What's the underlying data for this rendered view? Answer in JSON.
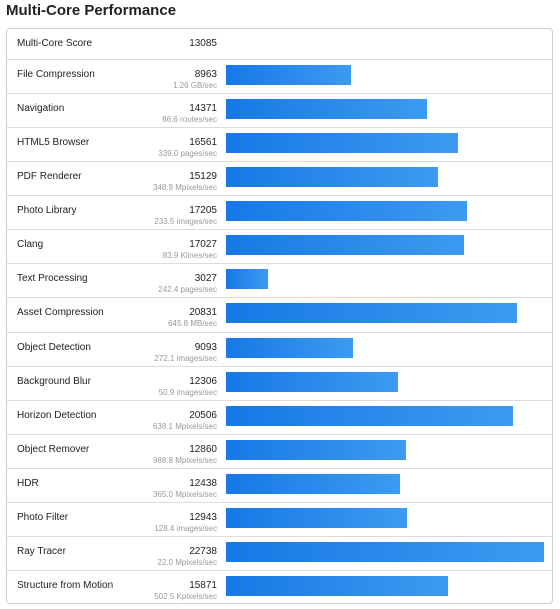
{
  "title": "Multi-Core Performance",
  "summary": {
    "label": "Multi-Core Score",
    "score": 13085
  },
  "rows": [
    {
      "name": "File Compression",
      "score": 8963,
      "rate": "1.26 GB/sec"
    },
    {
      "name": "Navigation",
      "score": 14371,
      "rate": "86.6 routes/sec"
    },
    {
      "name": "HTML5 Browser",
      "score": 16561,
      "rate": "339.0 pages/sec"
    },
    {
      "name": "PDF Renderer",
      "score": 15129,
      "rate": "348.9 Mpixels/sec"
    },
    {
      "name": "Photo Library",
      "score": 17205,
      "rate": "233.5 images/sec"
    },
    {
      "name": "Clang",
      "score": 17027,
      "rate": "83.9 Klines/sec"
    },
    {
      "name": "Text Processing",
      "score": 3027,
      "rate": "242.4 pages/sec"
    },
    {
      "name": "Asset Compression",
      "score": 20831,
      "rate": "645.8 MB/sec"
    },
    {
      "name": "Object Detection",
      "score": 9093,
      "rate": "272.1 images/sec"
    },
    {
      "name": "Background Blur",
      "score": 12306,
      "rate": "50.9 images/sec"
    },
    {
      "name": "Horizon Detection",
      "score": 20506,
      "rate": "638.1 Mpixels/sec"
    },
    {
      "name": "Object Remover",
      "score": 12860,
      "rate": "988.8 Mpixels/sec"
    },
    {
      "name": "HDR",
      "score": 12438,
      "rate": "365.0 Mpixels/sec"
    },
    {
      "name": "Photo Filter",
      "score": 12943,
      "rate": "128.4 images/sec"
    },
    {
      "name": "Ray Tracer",
      "score": 22738,
      "rate": "22.0 Mpixels/sec"
    },
    {
      "name": "Structure from Motion",
      "score": 15871,
      "rate": "502.5 Kpixels/sec"
    }
  ]
}
